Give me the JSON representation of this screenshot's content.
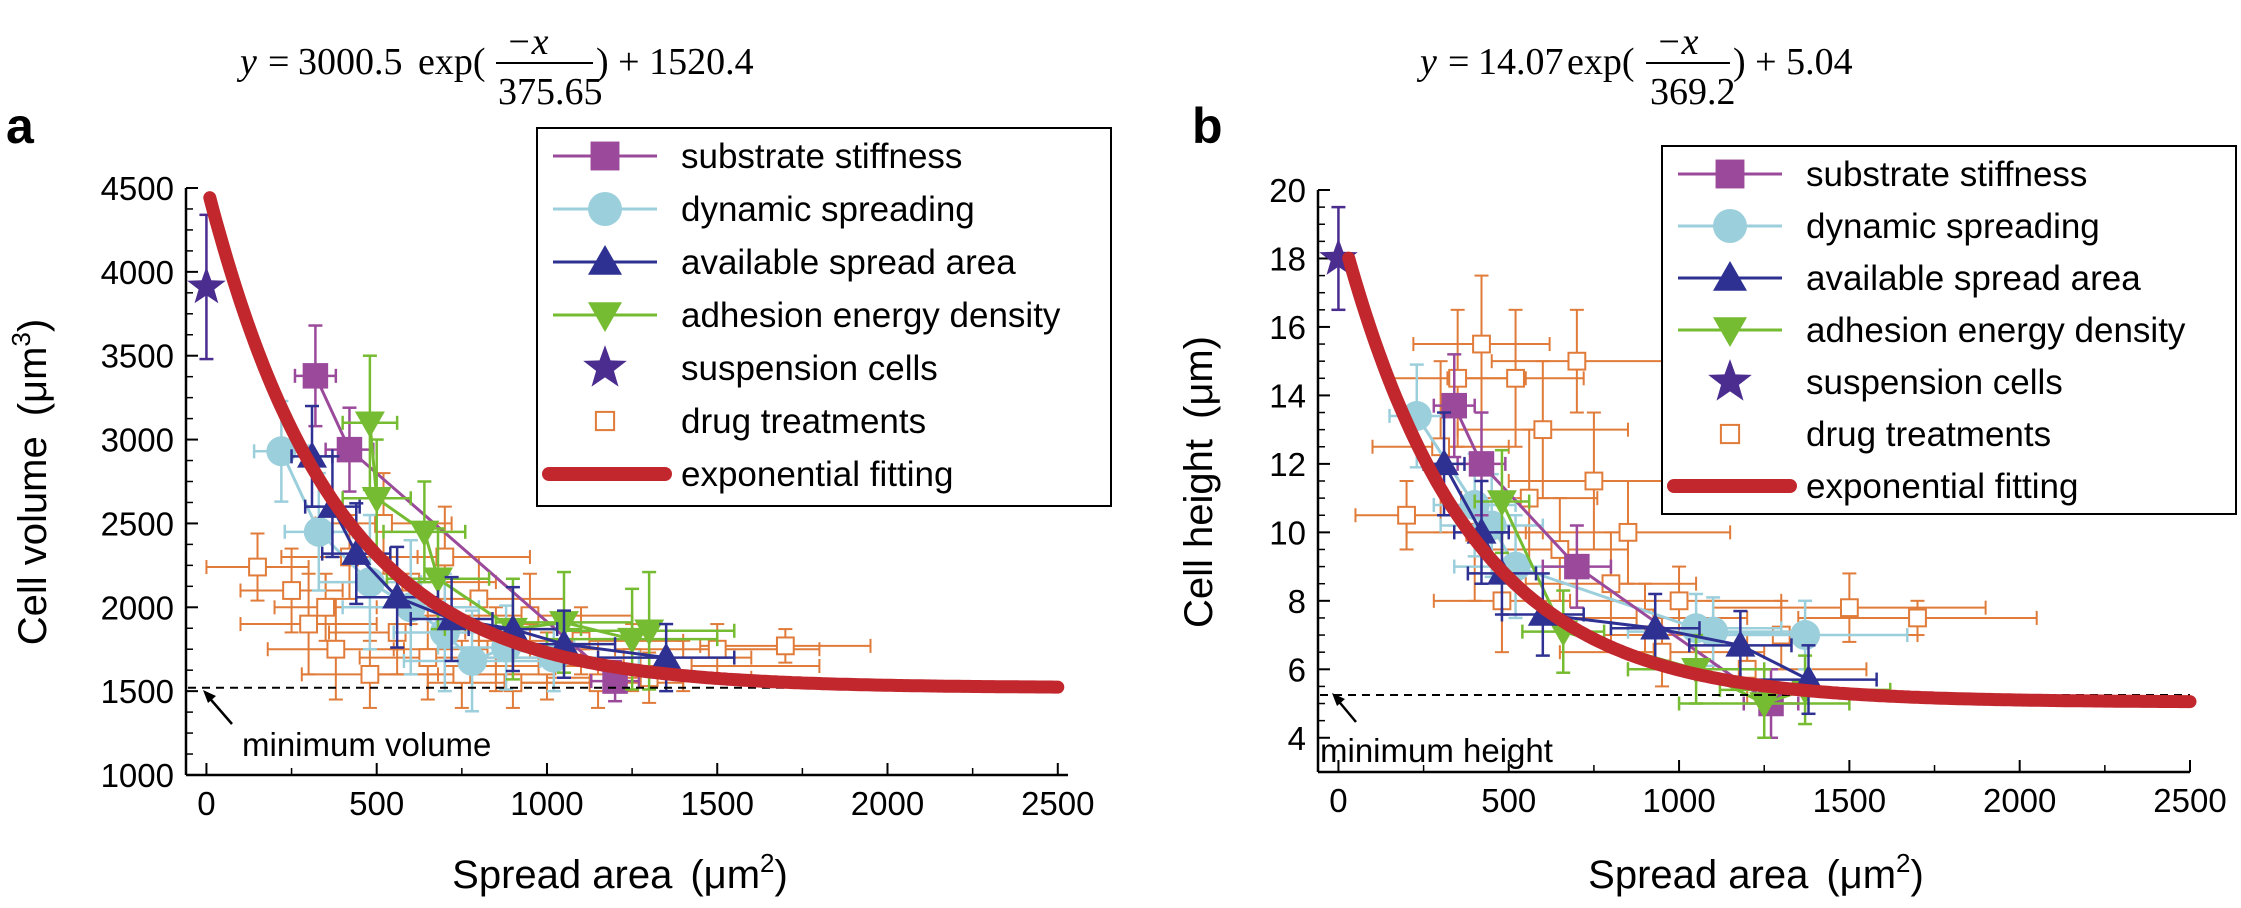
{
  "chart_data": [
    {
      "panel_label": "a",
      "type": "scatter",
      "equation": {
        "lhs": "y",
        "coef": "3000.5",
        "func": "exp(",
        "num": "−x",
        "den": "375.65",
        "tail": ") + 1520.4"
      },
      "xlabel": "Spread area",
      "xunit_base": "(μm",
      "xunit_sup": "2",
      "xunit_close": ")",
      "ylabel": "Cell volume",
      "yunit_base": "(μm",
      "yunit_sup": "3",
      "yunit_close": ")",
      "xlim": [
        -60,
        2530
      ],
      "ylim": [
        1000,
        4500
      ],
      "xticks": [
        0,
        500,
        1000,
        1500,
        2000,
        2500
      ],
      "yticks": [
        1000,
        1500,
        2000,
        2500,
        3000,
        3500,
        4000,
        4500
      ],
      "fit": {
        "a": 3000.5,
        "tau": 375.65,
        "c": 1520.4,
        "x_start": 0,
        "x_end": 2500
      },
      "min_line": {
        "value": 1520.4,
        "label": "minimum volume"
      },
      "legend": [
        "substrate stiffness",
        "dynamic spreading",
        "available spread area",
        "adhesion energy density",
        "suspension cells",
        "drug treatments",
        "exponential fitting"
      ],
      "series": [
        {
          "name": "substrate stiffness",
          "marker": "square",
          "color": "#9b4a9b",
          "points": [
            [
              320,
              3380,
              60,
              300
            ],
            [
              420,
              2940,
              70,
              250
            ],
            [
              1200,
              1560,
              70,
              120
            ]
          ]
        },
        {
          "name": "dynamic spreading",
          "marker": "circle",
          "color": "#9ccfdc",
          "points": [
            [
              220,
              2930,
              80,
              300
            ],
            [
              330,
              2450,
              100,
              350
            ],
            [
              480,
              2150,
              150,
              400
            ],
            [
              600,
              2000,
              200,
              400
            ],
            [
              700,
              1850,
              150,
              350
            ],
            [
              780,
              1680,
              200,
              300
            ],
            [
              880,
              1760,
              200,
              250
            ],
            [
              1020,
              1700,
              250,
              200
            ]
          ]
        },
        {
          "name": "available spread area",
          "marker": "triangle-up",
          "color": "#2e3192",
          "points": [
            [
              310,
              2900,
              60,
              300
            ],
            [
              370,
              2600,
              80,
              300
            ],
            [
              440,
              2320,
              100,
              300
            ],
            [
              560,
              2060,
              120,
              300
            ],
            [
              720,
              1930,
              120,
              250
            ],
            [
              900,
              1870,
              130,
              250
            ],
            [
              1050,
              1780,
              150,
              200
            ],
            [
              1350,
              1700,
              200,
              200
            ]
          ]
        },
        {
          "name": "adhesion energy density",
          "marker": "triangle-down",
          "color": "#76bc32",
          "points": [
            [
              480,
              3100,
              80,
              400
            ],
            [
              500,
              2650,
              100,
              350
            ],
            [
              640,
              2450,
              120,
              300
            ],
            [
              680,
              2170,
              150,
              300
            ],
            [
              900,
              1870,
              200,
              300
            ],
            [
              1050,
              1910,
              200,
              300
            ],
            [
              1250,
              1810,
              250,
              300
            ],
            [
              1300,
              1860,
              250,
              350
            ]
          ]
        },
        {
          "name": "suspension cells",
          "marker": "star",
          "color": "#4b2c8f",
          "points": [
            [
              0,
              3910,
              0,
              430
            ]
          ]
        },
        {
          "name": "drug treatments",
          "marker": "open-square",
          "color": "#e07b39",
          "points": [
            [
              150,
              2240,
              150,
              200
            ],
            [
              250,
              2100,
              150,
              250
            ],
            [
              300,
              1900,
              200,
              300
            ],
            [
              350,
              2000,
              150,
              200
            ],
            [
              380,
              1750,
              200,
              300
            ],
            [
              420,
              2300,
              200,
              250
            ],
            [
              480,
              1600,
              200,
              200
            ],
            [
              520,
              2500,
              200,
              300
            ],
            [
              560,
              1850,
              200,
              250
            ],
            [
              600,
              2150,
              250,
              250
            ],
            [
              650,
              1700,
              200,
              250
            ],
            [
              700,
              2300,
              250,
              300
            ],
            [
              750,
              1600,
              250,
              200
            ],
            [
              800,
              2050,
              250,
              250
            ],
            [
              850,
              1750,
              300,
              250
            ],
            [
              900,
              1550,
              250,
              150
            ],
            [
              950,
              1950,
              300,
              250
            ],
            [
              1000,
              1650,
              300,
              200
            ],
            [
              1100,
              1800,
              300,
              200
            ],
            [
              1150,
              1550,
              250,
              150
            ],
            [
              1250,
              1700,
              350,
              200
            ],
            [
              1300,
              1580,
              300,
              150
            ],
            [
              1400,
              1650,
              400,
              150
            ],
            [
              1500,
              1750,
              300,
              150
            ],
            [
              1700,
              1770,
              250,
              100
            ]
          ]
        }
      ]
    },
    {
      "panel_label": "b",
      "type": "scatter",
      "equation": {
        "lhs": "y",
        "coef": "14.07",
        "func": "exp(",
        "num": "−x",
        "den": "369.2",
        "tail": ") + 5.04"
      },
      "xlabel": "Spread area",
      "xunit_base": "(μm",
      "xunit_sup": "2",
      "xunit_close": ")",
      "ylabel": "Cell height",
      "yunit_base": "(μm)",
      "yunit_sup": "",
      "yunit_close": "",
      "xlim": [
        -60,
        2500
      ],
      "ylim": [
        3.0,
        20
      ],
      "xticks": [
        0,
        500,
        1000,
        1500,
        2000,
        2500
      ],
      "yticks": [
        4,
        6,
        8,
        10,
        12,
        14,
        16,
        18,
        20
      ],
      "fit": {
        "a": 14.07,
        "tau": 369.2,
        "c": 5.04,
        "x_start": 30,
        "x_end": 2500
      },
      "min_line": {
        "value": 5.25,
        "label": "minimum height"
      },
      "legend": [
        "substrate stiffness",
        "dynamic spreading",
        "available spread area",
        "adhesion energy density",
        "suspension cells",
        "drug treatments",
        "exponential fitting"
      ],
      "series": [
        {
          "name": "substrate stiffness",
          "marker": "square",
          "color": "#9b4a9b",
          "points": [
            [
              340,
              13.7,
              60,
              1.5
            ],
            [
              420,
              12.0,
              70,
              1.5
            ],
            [
              700,
              9.0,
              100,
              1.2
            ],
            [
              1270,
              5.0,
              80,
              1.0
            ]
          ]
        },
        {
          "name": "dynamic spreading",
          "marker": "circle",
          "color": "#9ccfdc",
          "points": [
            [
              230,
              13.4,
              80,
              1.5
            ],
            [
              400,
              10.8,
              120,
              1.5
            ],
            [
              450,
              10.2,
              150,
              1.5
            ],
            [
              520,
              9.0,
              180,
              1.5
            ],
            [
              1050,
              7.2,
              250,
              1.0
            ],
            [
              1100,
              7.1,
              250,
              1.0
            ],
            [
              1370,
              7.0,
              300,
              1.0
            ]
          ]
        },
        {
          "name": "available spread area",
          "marker": "triangle-up",
          "color": "#2e3192",
          "points": [
            [
              310,
              12.0,
              60,
              1.5
            ],
            [
              420,
              10.0,
              80,
              1.5
            ],
            [
              480,
              8.8,
              100,
              1.2
            ],
            [
              600,
              7.6,
              120,
              1.2
            ],
            [
              930,
              7.2,
              130,
              1.0
            ],
            [
              1180,
              6.7,
              150,
              1.0
            ],
            [
              1380,
              5.7,
              200,
              1.0
            ]
          ]
        },
        {
          "name": "adhesion energy density",
          "marker": "triangle-down",
          "color": "#76bc32",
          "points": [
            [
              480,
              10.9,
              80,
              1.5
            ],
            [
              660,
              7.1,
              120,
              1.2
            ],
            [
              1050,
              6.0,
              200,
              1.0
            ],
            [
              1250,
              5.0,
              250,
              1.0
            ],
            [
              1370,
              5.4,
              250,
              1.0
            ]
          ]
        },
        {
          "name": "suspension cells",
          "marker": "star",
          "color": "#4b2c8f",
          "points": [
            [
              0,
              18.0,
              0,
              1.5
            ]
          ]
        },
        {
          "name": "drug treatments",
          "marker": "open-square",
          "color": "#e07b39",
          "points": [
            [
              200,
              10.5,
              150,
              1.0
            ],
            [
              300,
              12.5,
              200,
              2.5
            ],
            [
              350,
              14.5,
              200,
              2.0
            ],
            [
              400,
              10.0,
              200,
              2.0
            ],
            [
              420,
              15.5,
              200,
              2.0
            ],
            [
              480,
              8.0,
              200,
              1.5
            ],
            [
              520,
              14.5,
              200,
              2.0
            ],
            [
              560,
              11.0,
              200,
              2.0
            ],
            [
              600,
              13.0,
              250,
              2.0
            ],
            [
              650,
              9.5,
              200,
              1.5
            ],
            [
              700,
              15.0,
              250,
              1.5
            ],
            [
              750,
              11.5,
              250,
              2.0
            ],
            [
              800,
              8.5,
              250,
              1.5
            ],
            [
              850,
              10.0,
              300,
              1.5
            ],
            [
              900,
              7.5,
              300,
              1.0
            ],
            [
              950,
              6.5,
              300,
              1.0
            ],
            [
              1000,
              8.0,
              300,
              1.0
            ],
            [
              1100,
              7.0,
              300,
              1.0
            ],
            [
              1200,
              6.0,
              350,
              1.0
            ],
            [
              1300,
              7.0,
              400,
              1.0
            ],
            [
              1500,
              7.8,
              400,
              1.0
            ],
            [
              1700,
              7.5,
              350,
              0.5
            ]
          ]
        }
      ]
    }
  ]
}
